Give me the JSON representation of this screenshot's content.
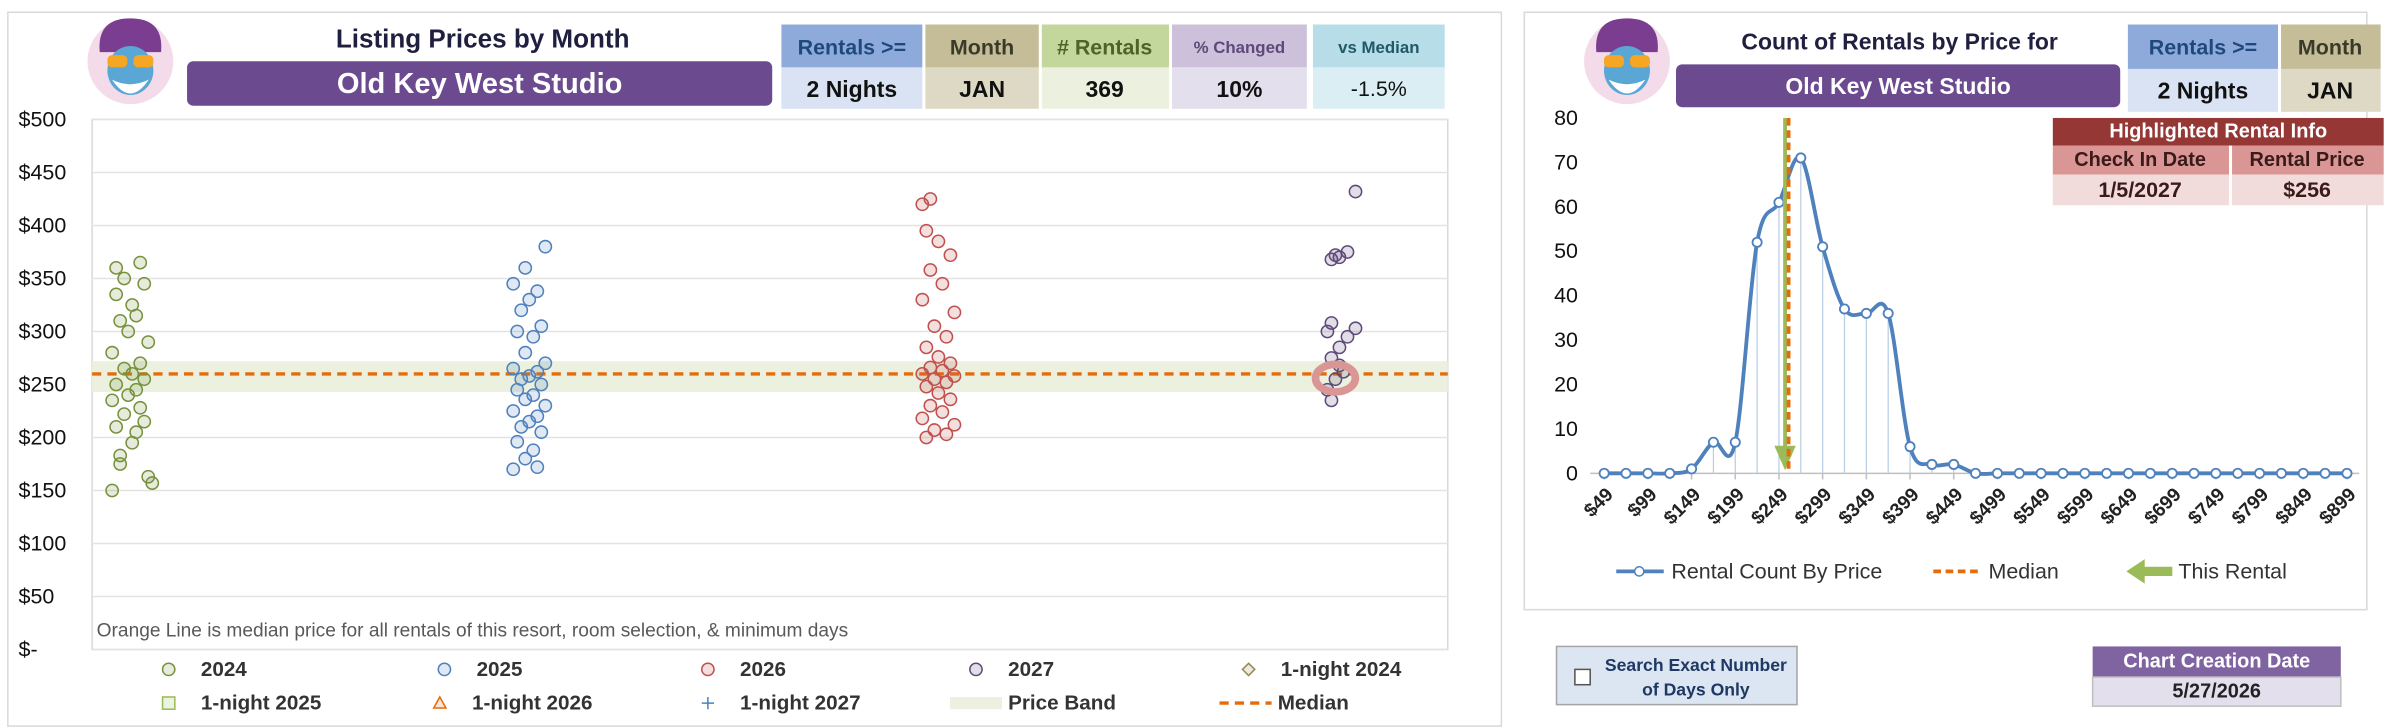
{
  "chart_data": [
    {
      "type": "scatter",
      "title": "Listing Prices by Month",
      "subtitle": "Old Key West Studio",
      "annotation": "Orange Line is median price for all rentals of this resort, room selection, & minimum days",
      "xlim": [
        2023.91,
        2027.29
      ],
      "ylim": [
        0,
        500
      ],
      "yticks": [
        {
          "value": 0,
          "label": "$-"
        },
        {
          "value": 50,
          "label": "$50"
        },
        {
          "value": 100,
          "label": "$100"
        },
        {
          "value": 150,
          "label": "$150"
        },
        {
          "value": 200,
          "label": "$200"
        },
        {
          "value": 250,
          "label": "$250"
        },
        {
          "value": 300,
          "label": "$300"
        },
        {
          "value": 350,
          "label": "$350"
        },
        {
          "value": 400,
          "label": "$400"
        },
        {
          "value": 450,
          "label": "$450"
        },
        {
          "value": 500,
          "label": "$500"
        }
      ],
      "grid": true,
      "series": [
        {
          "name": "2024",
          "color": "#76923c",
          "marker": "circle",
          "x": [
            2023.96,
            2024.05,
            2024.06,
            2023.98,
            2023.98,
            2024.01,
            2024.02,
            2023.97,
            2024.04,
            2023.99,
            2024.03,
            2023.96,
            2024.0,
            2024.02,
            2023.97,
            2024.04,
            2024.01,
            2023.99,
            2024.03,
            2023.96,
            2024.05,
            2024.0,
            2023.98,
            2024.02,
            2024.01,
            2023.97,
            2024.04,
            2023.99,
            2023.97,
            2024.03
          ],
          "values": [
            150,
            163,
            157,
            175,
            183,
            195,
            205,
            210,
            215,
            222,
            228,
            235,
            240,
            245,
            250,
            255,
            260,
            265,
            270,
            280,
            290,
            300,
            310,
            315,
            325,
            335,
            345,
            350,
            360,
            365
          ]
        },
        {
          "name": "2025",
          "color": "#4f81bd",
          "marker": "circle",
          "x": [
            2024.96,
            2025.02,
            2024.99,
            2025.01,
            2024.97,
            2025.03,
            2024.98,
            2025.0,
            2025.02,
            2024.96,
            2025.04,
            2024.99,
            2025.01,
            2024.97,
            2025.03,
            2024.98,
            2025.0,
            2025.02,
            2024.96,
            2025.04,
            2024.99,
            2025.01,
            2024.97,
            2025.03,
            2024.98,
            2025.0,
            2025.02,
            2024.96,
            2024.99,
            2025.04
          ],
          "values": [
            170,
            172,
            180,
            188,
            196,
            205,
            210,
            215,
            220,
            225,
            230,
            236,
            240,
            245,
            250,
            255,
            258,
            262,
            265,
            270,
            280,
            295,
            300,
            305,
            320,
            330,
            338,
            345,
            360,
            380
          ]
        },
        {
          "name": "2026",
          "color": "#c0504d",
          "marker": "circle",
          "x": [
            2025.99,
            2026.04,
            2026.01,
            2026.06,
            2025.98,
            2026.03,
            2026.0,
            2026.05,
            2026.02,
            2025.99,
            2026.04,
            2026.01,
            2026.06,
            2025.98,
            2026.03,
            2026.0,
            2026.05,
            2026.02,
            2025.99,
            2026.04,
            2026.01,
            2026.06,
            2025.98,
            2026.03,
            2026.0,
            2026.05,
            2026.02,
            2025.99,
            2025.98,
            2026.0
          ],
          "values": [
            200,
            203,
            207,
            212,
            218,
            224,
            230,
            236,
            242,
            248,
            252,
            255,
            258,
            260,
            263,
            266,
            270,
            276,
            285,
            295,
            305,
            318,
            330,
            345,
            358,
            372,
            385,
            395,
            420,
            425
          ]
        },
        {
          "name": "2027",
          "color": "#5f497a",
          "marker": "circle",
          "x": [
            2027.0,
            2026.99,
            2027.01,
            2027.03,
            2027.02,
            2027.0,
            2027.02,
            2027.04,
            2026.99,
            2027.06,
            2027.0,
            2027.0,
            2027.02,
            2027.01,
            2027.04,
            2027.06
          ],
          "values": [
            235,
            245,
            255,
            262,
            268,
            275,
            285,
            295,
            300,
            303,
            308,
            368,
            370,
            372,
            375,
            432
          ]
        },
        {
          "name": "1-night 2024",
          "color": "#948a54",
          "marker": "diamond",
          "x": [],
          "values": []
        },
        {
          "name": "1-night 2025",
          "color": "#9bbb59",
          "marker": "square",
          "x": [],
          "values": []
        },
        {
          "name": "1-night 2026",
          "color": "#e46c0a",
          "marker": "triangle",
          "x": [],
          "values": []
        },
        {
          "name": "1-night 2027",
          "color": "#4f81bd",
          "marker": "plus",
          "x": [],
          "values": []
        }
      ],
      "price_band": {
        "name": "Price Band",
        "color": "#ebf1de",
        "values": [
          243,
          272
        ]
      },
      "median": {
        "name": "Median",
        "color": "#e46c0a",
        "value": 260
      },
      "highlight": {
        "x": 2027.01,
        "y": 256,
        "color": "#d99694"
      }
    },
    {
      "type": "line",
      "title": "Count of Rentals by Price for",
      "subtitle": "Old Key West Studio",
      "xlim": [
        33,
        913
      ],
      "ylim": [
        0,
        80
      ],
      "yticks": [
        0,
        10,
        20,
        30,
        40,
        50,
        60,
        70,
        80
      ],
      "grid": false,
      "xticks": [
        {
          "value": 49,
          "label": "$49"
        },
        {
          "value": 99,
          "label": "$99"
        },
        {
          "value": 149,
          "label": "$149"
        },
        {
          "value": 199,
          "label": "$199"
        },
        {
          "value": 249,
          "label": "$249"
        },
        {
          "value": 299,
          "label": "$299"
        },
        {
          "value": 349,
          "label": "$349"
        },
        {
          "value": 399,
          "label": "$399"
        },
        {
          "value": 449,
          "label": "$449"
        },
        {
          "value": 499,
          "label": "$499"
        },
        {
          "value": 549,
          "label": "$549"
        },
        {
          "value": 599,
          "label": "$599"
        },
        {
          "value": 649,
          "label": "$649"
        },
        {
          "value": 699,
          "label": "$699"
        },
        {
          "value": 749,
          "label": "$749"
        },
        {
          "value": 799,
          "label": "$799"
        },
        {
          "value": 849,
          "label": "$849"
        },
        {
          "value": 899,
          "label": "$899"
        }
      ],
      "series": [
        {
          "name": "Rental Count By Price",
          "color": "#4f81bd",
          "x": [
            49,
            74,
            99,
            124,
            149,
            174,
            199,
            224,
            249,
            274,
            299,
            324,
            349,
            374,
            399,
            424,
            449,
            474,
            499,
            524,
            549,
            574,
            599,
            624,
            649,
            674,
            699,
            724,
            749,
            774,
            799,
            824,
            849,
            874,
            899
          ],
          "values": [
            0,
            0,
            0,
            0,
            1,
            7,
            7,
            52,
            61,
            71,
            51,
            37,
            36,
            36,
            6,
            2,
            2,
            0,
            0,
            0,
            0,
            0,
            0,
            0,
            0,
            0,
            0,
            0,
            0,
            0,
            0,
            0,
            0,
            0,
            0
          ]
        }
      ],
      "median": {
        "name": "Median",
        "color": "#e46c0a",
        "value": 260
      },
      "this_rental": {
        "name": "This Rental",
        "color": "#9bbb59",
        "value": 256,
        "label": "$256"
      }
    }
  ],
  "left_panel": {
    "headers": [
      "Rentals >=",
      "Month",
      "# Rentals",
      "% Changed",
      "vs Median"
    ],
    "values": [
      "2 Nights",
      "JAN",
      "369",
      "10%",
      "-1.5%"
    ]
  },
  "right_panel": {
    "headers": [
      "Rentals >=",
      "Month"
    ],
    "values": [
      "2 Nights",
      "JAN"
    ],
    "highlight": {
      "title": "Highlighted Rental Info",
      "headers": [
        "Check In Date",
        "Rental Price"
      ],
      "check_in": "1/5/2027"
    }
  },
  "controls": {
    "checkbox_label": [
      "Search Exact Number",
      "of Days Only"
    ],
    "creation_date_label": "Chart Creation Date",
    "creation_date": "5/27/2026"
  }
}
